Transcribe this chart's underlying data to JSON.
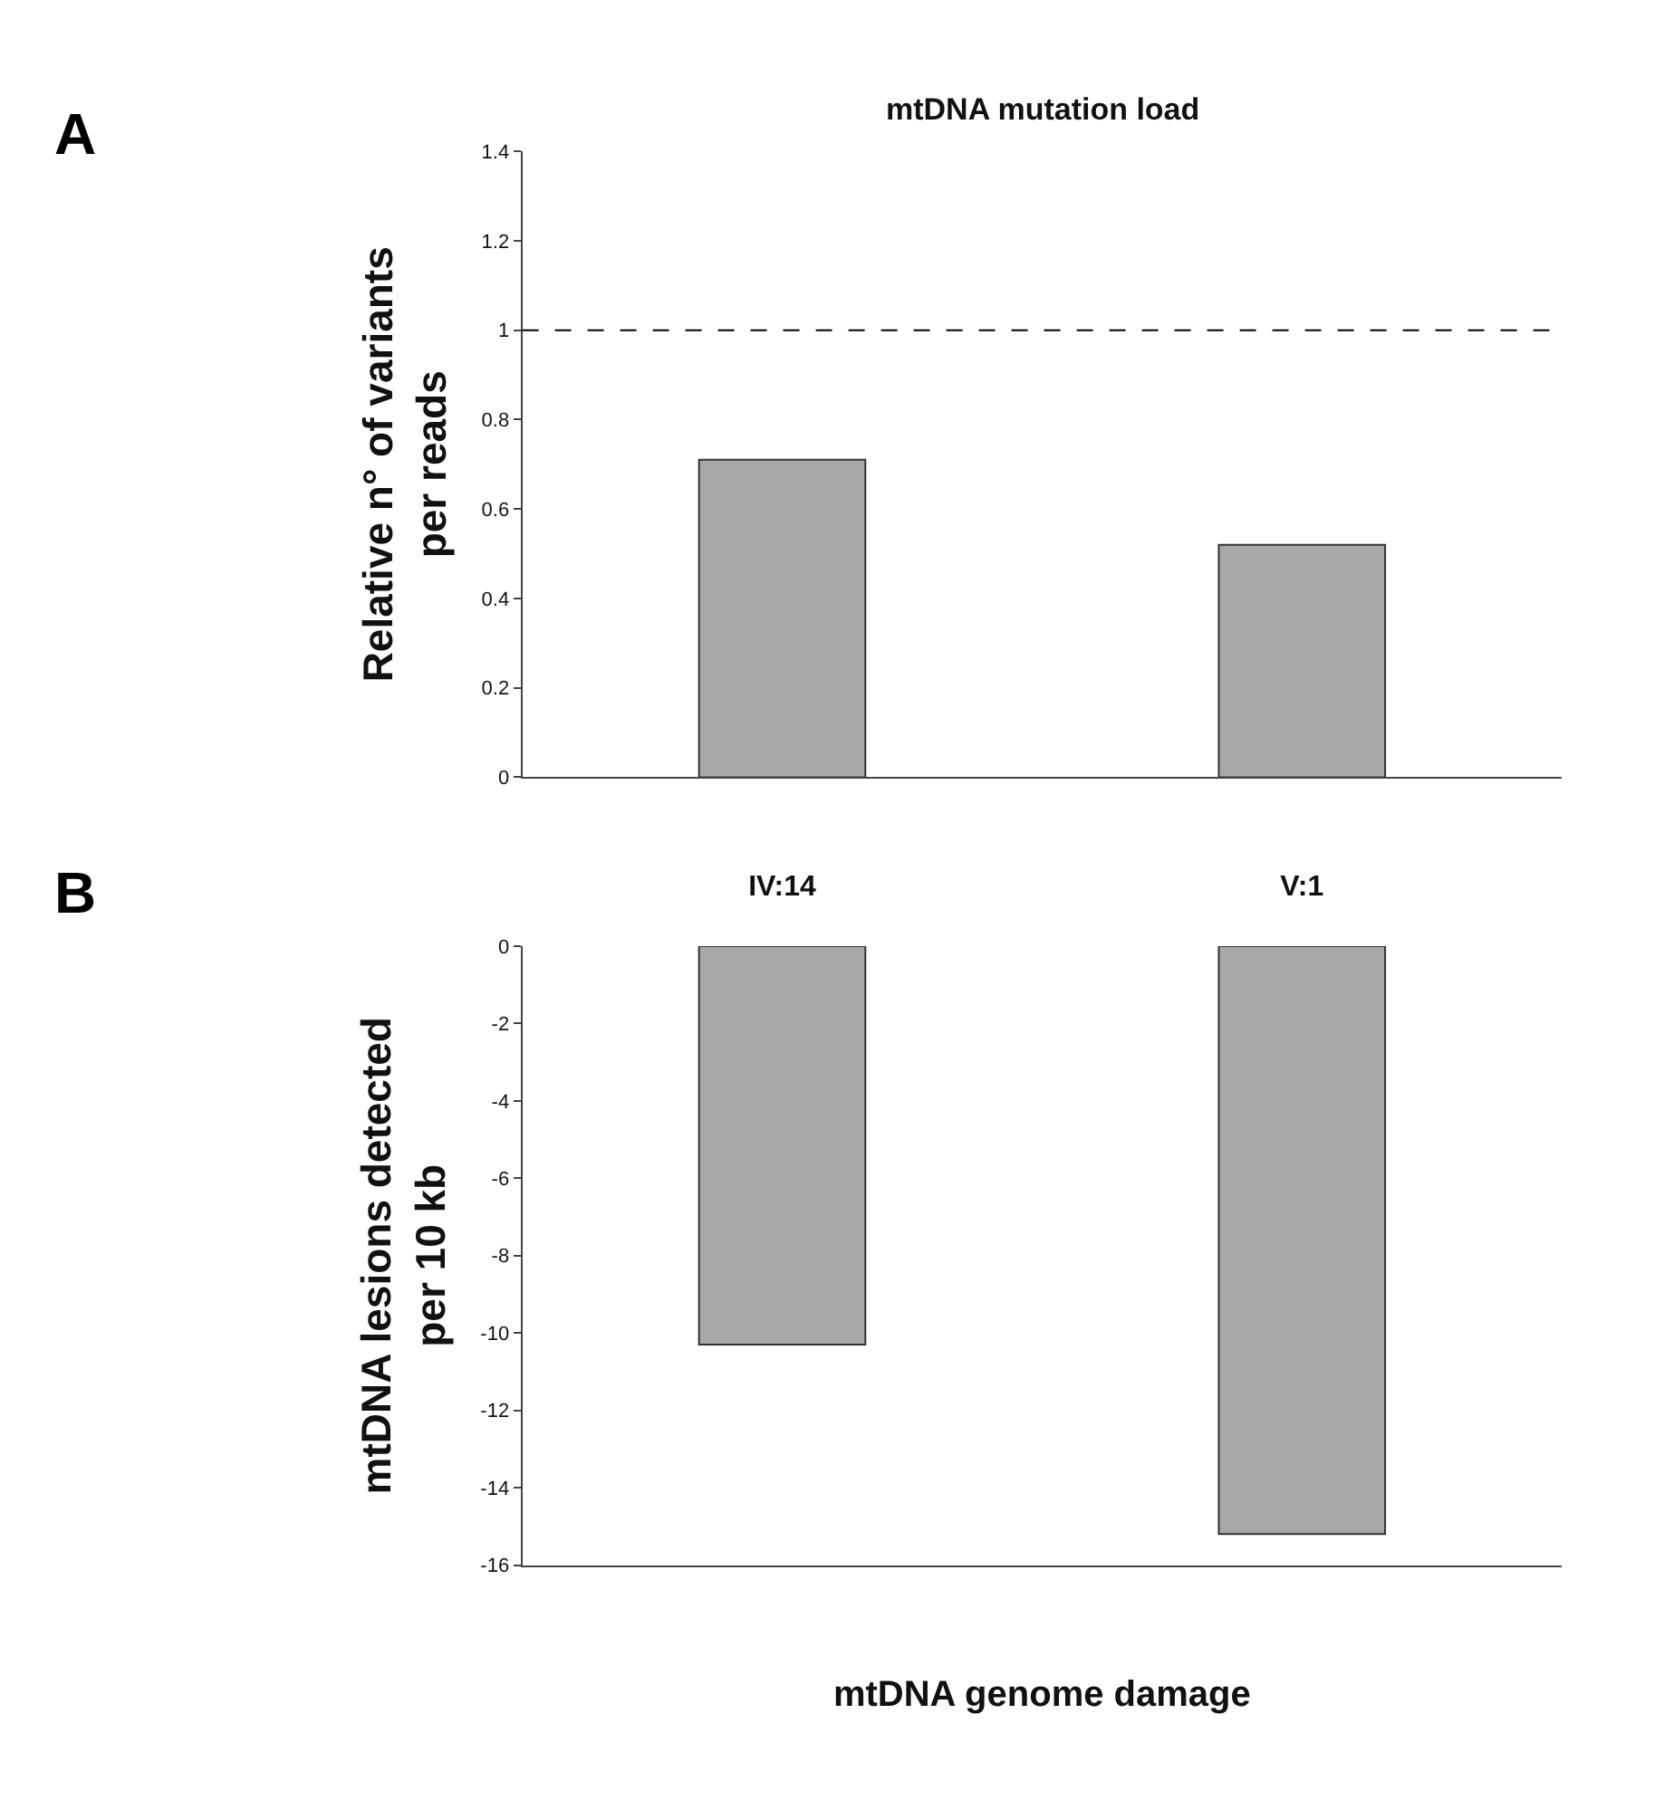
{
  "chart_data": [
    {
      "type": "bar",
      "title": "mtDNA mutation load",
      "ylabel": "Relative n° of variants per reads",
      "categories": [
        "IV:14",
        "V:1"
      ],
      "series": [
        {
          "color": "#aaa7a7",
          "values": [
            0.71,
            0.52
          ]
        }
      ],
      "ylim": [
        0,
        1.4
      ],
      "yticks": [
        0,
        {
          "value": 0.2,
          "label": "0.2"
        },
        {
          "value": 0.4,
          "label": "0.4"
        },
        {
          "value": 0.6,
          "label": "0.6"
        },
        {
          "value": 0.8,
          "label": "0.8"
        },
        1,
        {
          "value": 1.2,
          "label": "1.2"
        },
        {
          "value": 1.4,
          "label": "1.4"
        }
      ],
      "ref_lines": [
        {
          "axis": "y",
          "value": 1,
          "line_style": "dashed",
          "color": "#000000"
        }
      ],
      "annotations": [
        "A"
      ]
    },
    {
      "type": "bar",
      "xlabel": "mtDNA genome damage",
      "ylabel": "mtDNA lesions detected per 10 kb",
      "categories": [
        null,
        null
      ],
      "series": [
        {
          "color": "#aaa7a7",
          "values": [
            -10.3,
            -15.2
          ]
        }
      ],
      "ylim": [
        -16,
        0
      ],
      "yticks": [
        -16,
        -14,
        -12,
        -10,
        -8,
        -6,
        -4,
        -2,
        0
      ],
      "annotations": [
        "B"
      ]
    }
  ]
}
